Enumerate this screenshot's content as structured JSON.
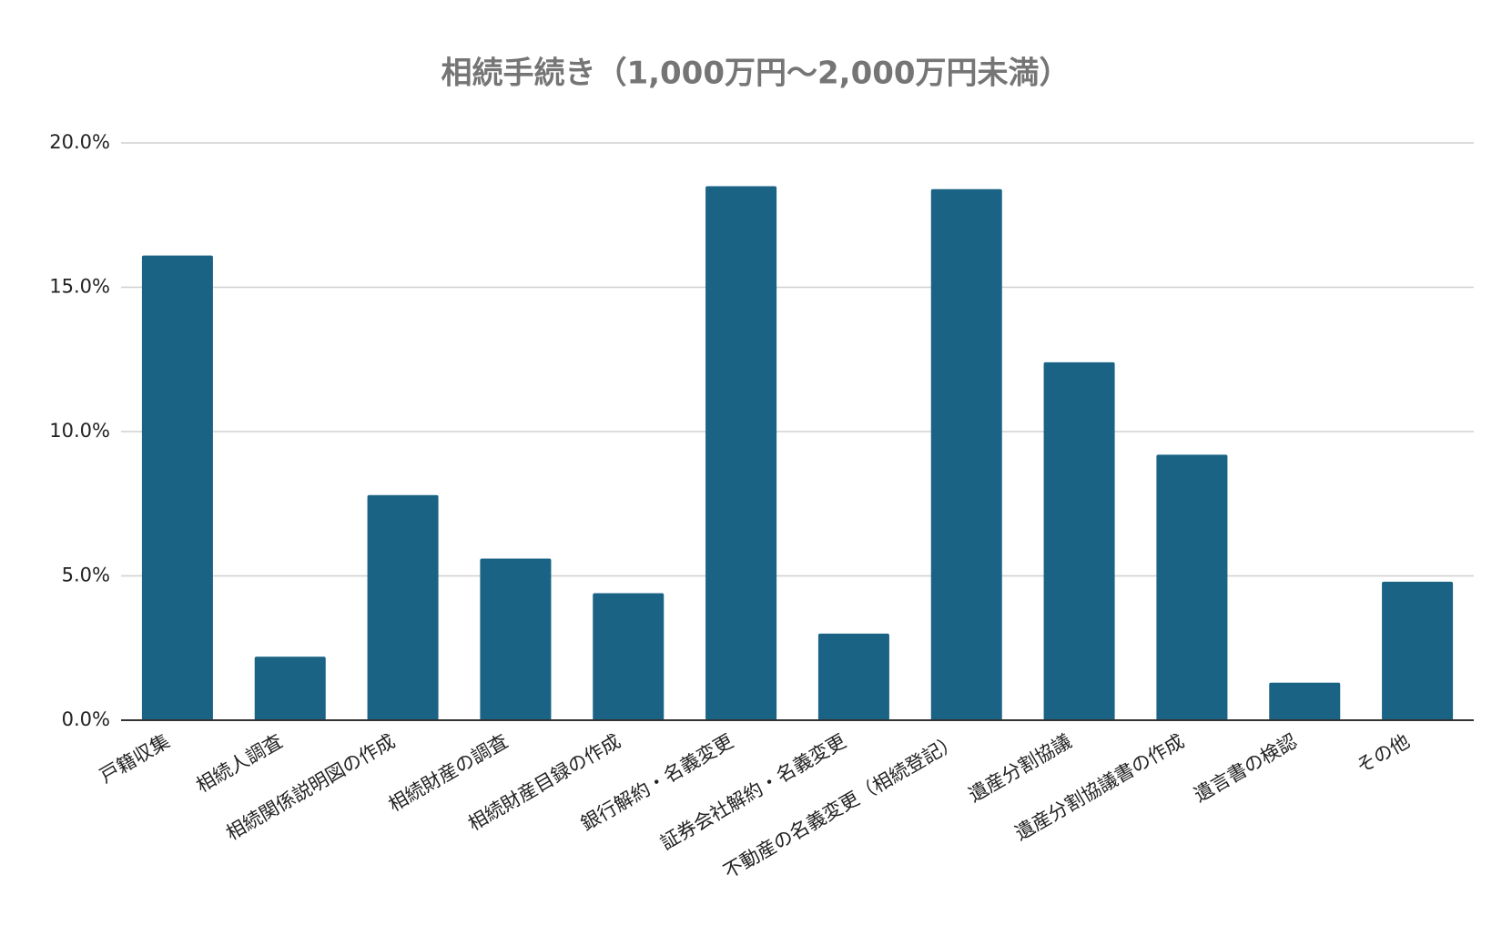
{
  "chart_data": {
    "type": "bar",
    "title": "相続手続き（1,000万円～2,000万円未満）",
    "categories": [
      "戸籍収集",
      "相続人調査",
      "相続関係説明図の作成",
      "相続財産の調査",
      "相続財産目録の作成",
      "銀行解約・名義変更",
      "証券会社解約・名義変更",
      "不動産の名義変更（相続登記）",
      "遺産分割協議",
      "遺産分割協議書の作成",
      "遺言書の検認",
      "その他"
    ],
    "values": [
      16.1,
      2.2,
      7.8,
      5.6,
      4.4,
      18.5,
      3.0,
      18.4,
      12.4,
      9.2,
      1.3,
      4.8
    ],
    "color": "#1a6385",
    "ylim": [
      0,
      20
    ],
    "yticks": [
      {
        "value": 0,
        "label": "0.0%"
      },
      {
        "value": 5,
        "label": "5.0%"
      },
      {
        "value": 10,
        "label": "10.0%"
      },
      {
        "value": 15,
        "label": "15.0%"
      },
      {
        "value": 20,
        "label": "20.0%"
      }
    ],
    "grid": true
  }
}
